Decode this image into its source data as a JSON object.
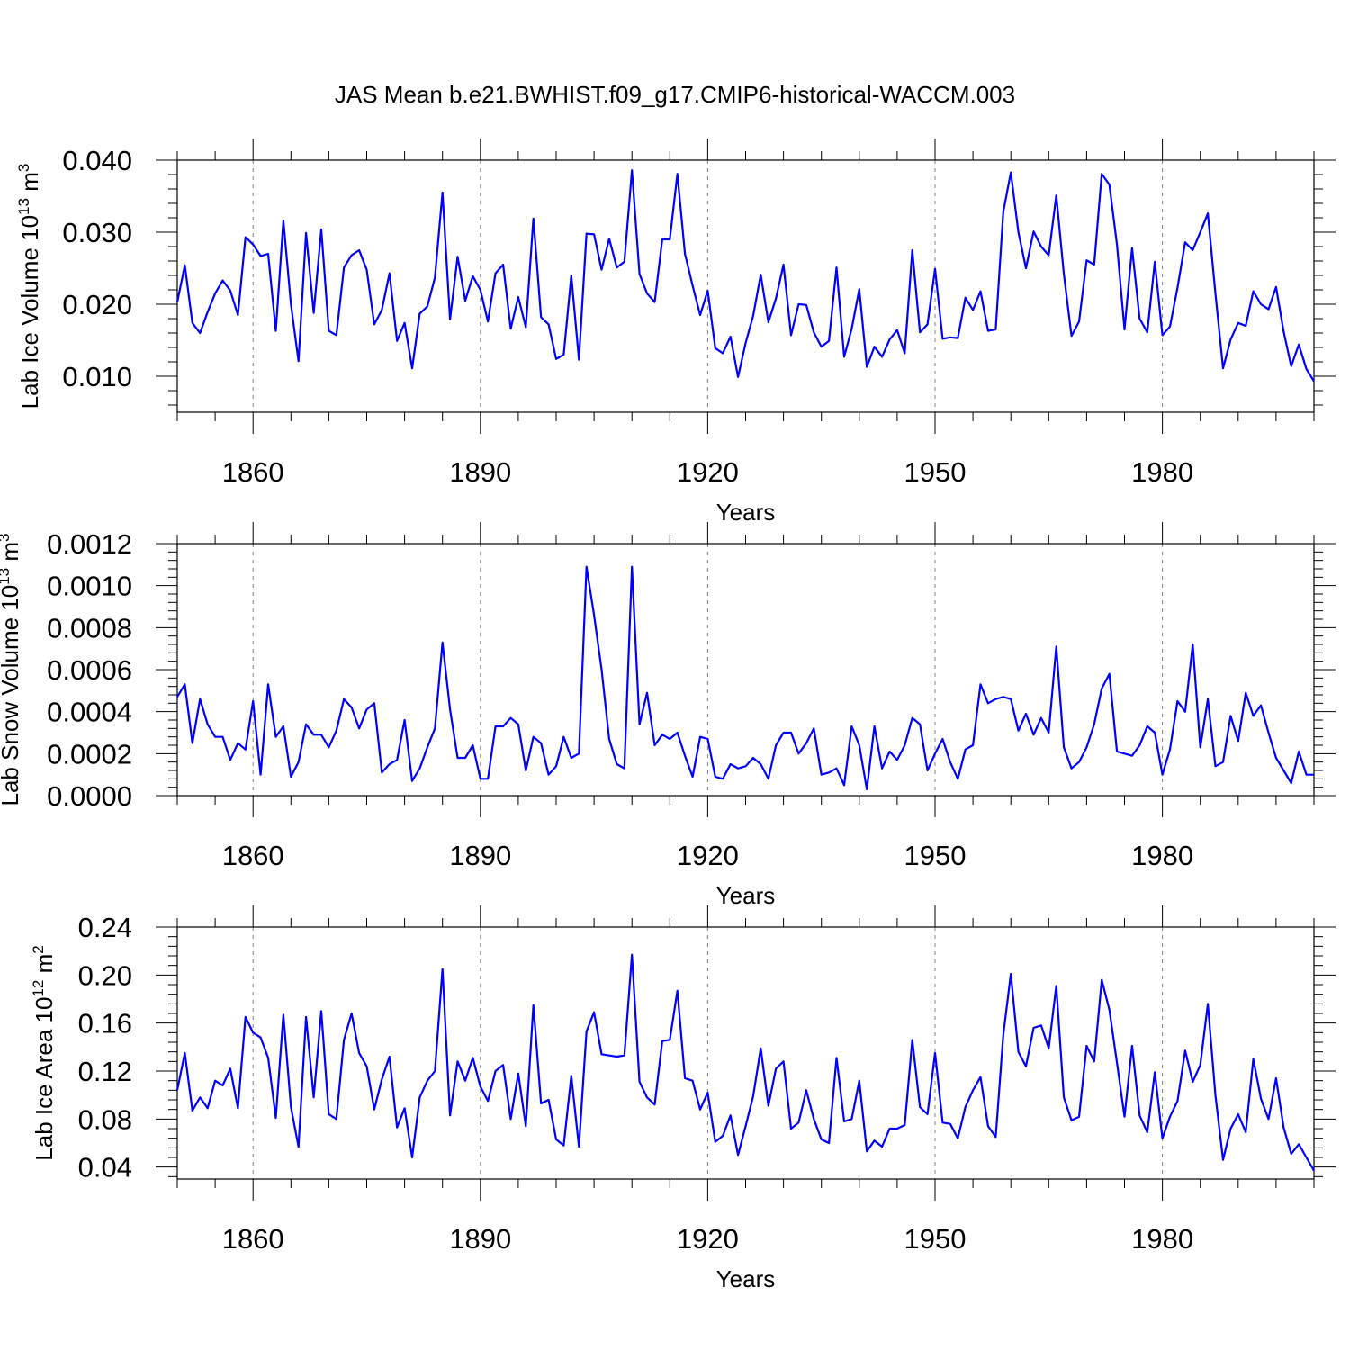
{
  "chart_data": {
    "type": "line",
    "title": "JAS Mean b.e21.BWHIST.f09_g17.CMIP6-historical-WACCM.003",
    "x_start": 1850,
    "x_end": 2000,
    "xlim": [
      1850,
      2000
    ],
    "x_ticks": [
      1860,
      1890,
      1920,
      1950,
      1980
    ],
    "panels": [
      {
        "name": "Lab Ice Volume",
        "ylabel": "Lab Ice Volume 10",
        "ylabel_exp": "13",
        "ylabel_unit": " m",
        "ylabel_unit_exp": "3",
        "xlabel": "Years",
        "ylim": [
          0.005,
          0.04
        ],
        "y_ticks": [
          0.01,
          0.02,
          0.03,
          0.04
        ],
        "y_tick_labels": [
          "0.010",
          "0.020",
          "0.030",
          "0.040"
        ],
        "values": [
          0.0203,
          0.0254,
          0.0174,
          0.016,
          0.0189,
          0.0215,
          0.0233,
          0.0219,
          0.0185,
          0.0293,
          0.0283,
          0.0267,
          0.027,
          0.0163,
          0.0316,
          0.02,
          0.0121,
          0.0299,
          0.0188,
          0.0304,
          0.0163,
          0.0157,
          0.0251,
          0.0268,
          0.0275,
          0.0248,
          0.0172,
          0.0192,
          0.0243,
          0.0149,
          0.0174,
          0.0111,
          0.0187,
          0.0197,
          0.0237,
          0.0355,
          0.0179,
          0.0266,
          0.0205,
          0.0239,
          0.022,
          0.0176,
          0.0243,
          0.0255,
          0.0166,
          0.021,
          0.0168,
          0.0319,
          0.0182,
          0.0172,
          0.0124,
          0.013,
          0.024,
          0.0123,
          0.0298,
          0.0297,
          0.0248,
          0.0291,
          0.0251,
          0.0259,
          0.0386,
          0.0242,
          0.0215,
          0.0203,
          0.029,
          0.029,
          0.0381,
          0.027,
          0.0226,
          0.0185,
          0.0219,
          0.0139,
          0.0132,
          0.0155,
          0.0099,
          0.0146,
          0.0184,
          0.0241,
          0.0175,
          0.0208,
          0.0255,
          0.0157,
          0.02,
          0.0199,
          0.0161,
          0.0141,
          0.0149,
          0.0251,
          0.0127,
          0.0166,
          0.0221,
          0.0113,
          0.0141,
          0.0127,
          0.0151,
          0.0164,
          0.0132,
          0.0275,
          0.0161,
          0.0172,
          0.0249,
          0.0152,
          0.0154,
          0.0153,
          0.0209,
          0.0192,
          0.0218,
          0.0163,
          0.0165,
          0.0328,
          0.0383,
          0.03,
          0.025,
          0.0301,
          0.028,
          0.0268,
          0.0351,
          0.0242,
          0.0156,
          0.0176,
          0.0261,
          0.0255,
          0.0381,
          0.0366,
          0.0283,
          0.0165,
          0.0278,
          0.018,
          0.0161,
          0.0259,
          0.0157,
          0.0169,
          0.0223,
          0.0286,
          0.0275,
          0.03,
          0.0326,
          0.0215,
          0.0111,
          0.0151,
          0.0174,
          0.017,
          0.0218,
          0.02,
          0.0193,
          0.0224,
          0.0162,
          0.0114,
          0.0144,
          0.011,
          0.0093
        ]
      },
      {
        "name": "Lab Snow Volume",
        "ylabel": "Lab Snow Volume 10",
        "ylabel_exp": "13",
        "ylabel_unit": " m",
        "ylabel_unit_exp": "3",
        "xlabel": "Years",
        "ylim": [
          0.0,
          0.0012
        ],
        "y_ticks": [
          0.0,
          0.0002,
          0.0004,
          0.0006,
          0.0008,
          0.001,
          0.0012
        ],
        "y_tick_labels": [
          "0.0000",
          "0.0002",
          "0.0004",
          "0.0006",
          "0.0008",
          "0.0010",
          "0.0012"
        ],
        "values": [
          0.00047,
          0.00053,
          0.00025,
          0.00046,
          0.00034,
          0.00028,
          0.00028,
          0.00017,
          0.00025,
          0.00022,
          0.00045,
          0.0001,
          0.00053,
          0.00028,
          0.00033,
          9e-05,
          0.00016,
          0.00034,
          0.00029,
          0.00029,
          0.00023,
          0.00031,
          0.00046,
          0.00042,
          0.00032,
          0.00041,
          0.00044,
          0.00011,
          0.00015,
          0.00017,
          0.00036,
          7e-05,
          0.00013,
          0.00023,
          0.00032,
          0.00073,
          0.00041,
          0.00018,
          0.00018,
          0.00024,
          8e-05,
          8e-05,
          0.00033,
          0.00033,
          0.00037,
          0.00034,
          0.00012,
          0.00028,
          0.00025,
          0.0001,
          0.00014,
          0.00028,
          0.00018,
          0.0002,
          0.00109,
          0.00086,
          0.0006,
          0.00027,
          0.00015,
          0.00013,
          0.00109,
          0.00034,
          0.00049,
          0.00024,
          0.00029,
          0.00027,
          0.0003,
          0.00019,
          9e-05,
          0.00028,
          0.00027,
          9e-05,
          8e-05,
          0.00015,
          0.00013,
          0.00014,
          0.00018,
          0.00015,
          8e-05,
          0.00024,
          0.0003,
          0.0003,
          0.0002,
          0.00025,
          0.00032,
          0.0001,
          0.00011,
          0.00013,
          5e-05,
          0.00033,
          0.00024,
          3e-05,
          0.00033,
          0.00013,
          0.00021,
          0.00017,
          0.00024,
          0.00037,
          0.00034,
          0.00012,
          0.0002,
          0.00027,
          0.00016,
          8e-05,
          0.00022,
          0.00024,
          0.00053,
          0.00044,
          0.00046,
          0.00047,
          0.00046,
          0.00031,
          0.00039,
          0.00029,
          0.00037,
          0.0003,
          0.00071,
          0.00023,
          0.00013,
          0.00016,
          0.00023,
          0.00034,
          0.00051,
          0.00058,
          0.00021,
          0.0002,
          0.00019,
          0.00024,
          0.00033,
          0.0003,
          0.0001,
          0.00022,
          0.00045,
          0.0004,
          0.00072,
          0.00023,
          0.00046,
          0.00014,
          0.00016,
          0.00038,
          0.00026,
          0.00049,
          0.00038,
          0.00043,
          0.0003,
          0.00018,
          0.00012,
          6e-05,
          0.00021,
          0.0001,
          0.0001
        ]
      },
      {
        "name": "Lab Ice Area",
        "ylabel": "Lab Ice Area 10",
        "ylabel_exp": "12",
        "ylabel_unit": " m",
        "ylabel_unit_exp": "2",
        "xlabel": "Years",
        "ylim": [
          0.03,
          0.24
        ],
        "y_ticks": [
          0.04,
          0.08,
          0.12,
          0.16,
          0.2,
          0.24
        ],
        "y_tick_labels": [
          "0.04",
          "0.08",
          "0.12",
          "0.16",
          "0.20",
          "0.24"
        ],
        "values": [
          0.104,
          0.135,
          0.087,
          0.098,
          0.089,
          0.112,
          0.108,
          0.122,
          0.089,
          0.165,
          0.152,
          0.148,
          0.131,
          0.081,
          0.167,
          0.09,
          0.057,
          0.165,
          0.098,
          0.17,
          0.084,
          0.08,
          0.146,
          0.168,
          0.135,
          0.124,
          0.088,
          0.113,
          0.132,
          0.073,
          0.089,
          0.048,
          0.098,
          0.112,
          0.12,
          0.205,
          0.083,
          0.128,
          0.112,
          0.131,
          0.107,
          0.095,
          0.12,
          0.125,
          0.08,
          0.118,
          0.074,
          0.175,
          0.093,
          0.096,
          0.063,
          0.058,
          0.116,
          0.057,
          0.153,
          0.169,
          0.134,
          0.133,
          0.132,
          0.133,
          0.217,
          0.111,
          0.098,
          0.092,
          0.145,
          0.146,
          0.187,
          0.114,
          0.112,
          0.088,
          0.102,
          0.061,
          0.066,
          0.083,
          0.05,
          0.074,
          0.099,
          0.139,
          0.091,
          0.122,
          0.128,
          0.072,
          0.077,
          0.104,
          0.08,
          0.063,
          0.06,
          0.131,
          0.078,
          0.08,
          0.112,
          0.053,
          0.062,
          0.057,
          0.072,
          0.072,
          0.075,
          0.146,
          0.09,
          0.084,
          0.135,
          0.077,
          0.076,
          0.064,
          0.09,
          0.104,
          0.115,
          0.074,
          0.065,
          0.15,
          0.201,
          0.136,
          0.124,
          0.156,
          0.158,
          0.139,
          0.191,
          0.098,
          0.079,
          0.082,
          0.141,
          0.128,
          0.196,
          0.171,
          0.127,
          0.082,
          0.141,
          0.083,
          0.069,
          0.119,
          0.064,
          0.082,
          0.095,
          0.137,
          0.111,
          0.125,
          0.176,
          0.1,
          0.046,
          0.072,
          0.084,
          0.069,
          0.13,
          0.097,
          0.08,
          0.114,
          0.073,
          0.051,
          0.059,
          0.048,
          0.037
        ]
      }
    ]
  }
}
